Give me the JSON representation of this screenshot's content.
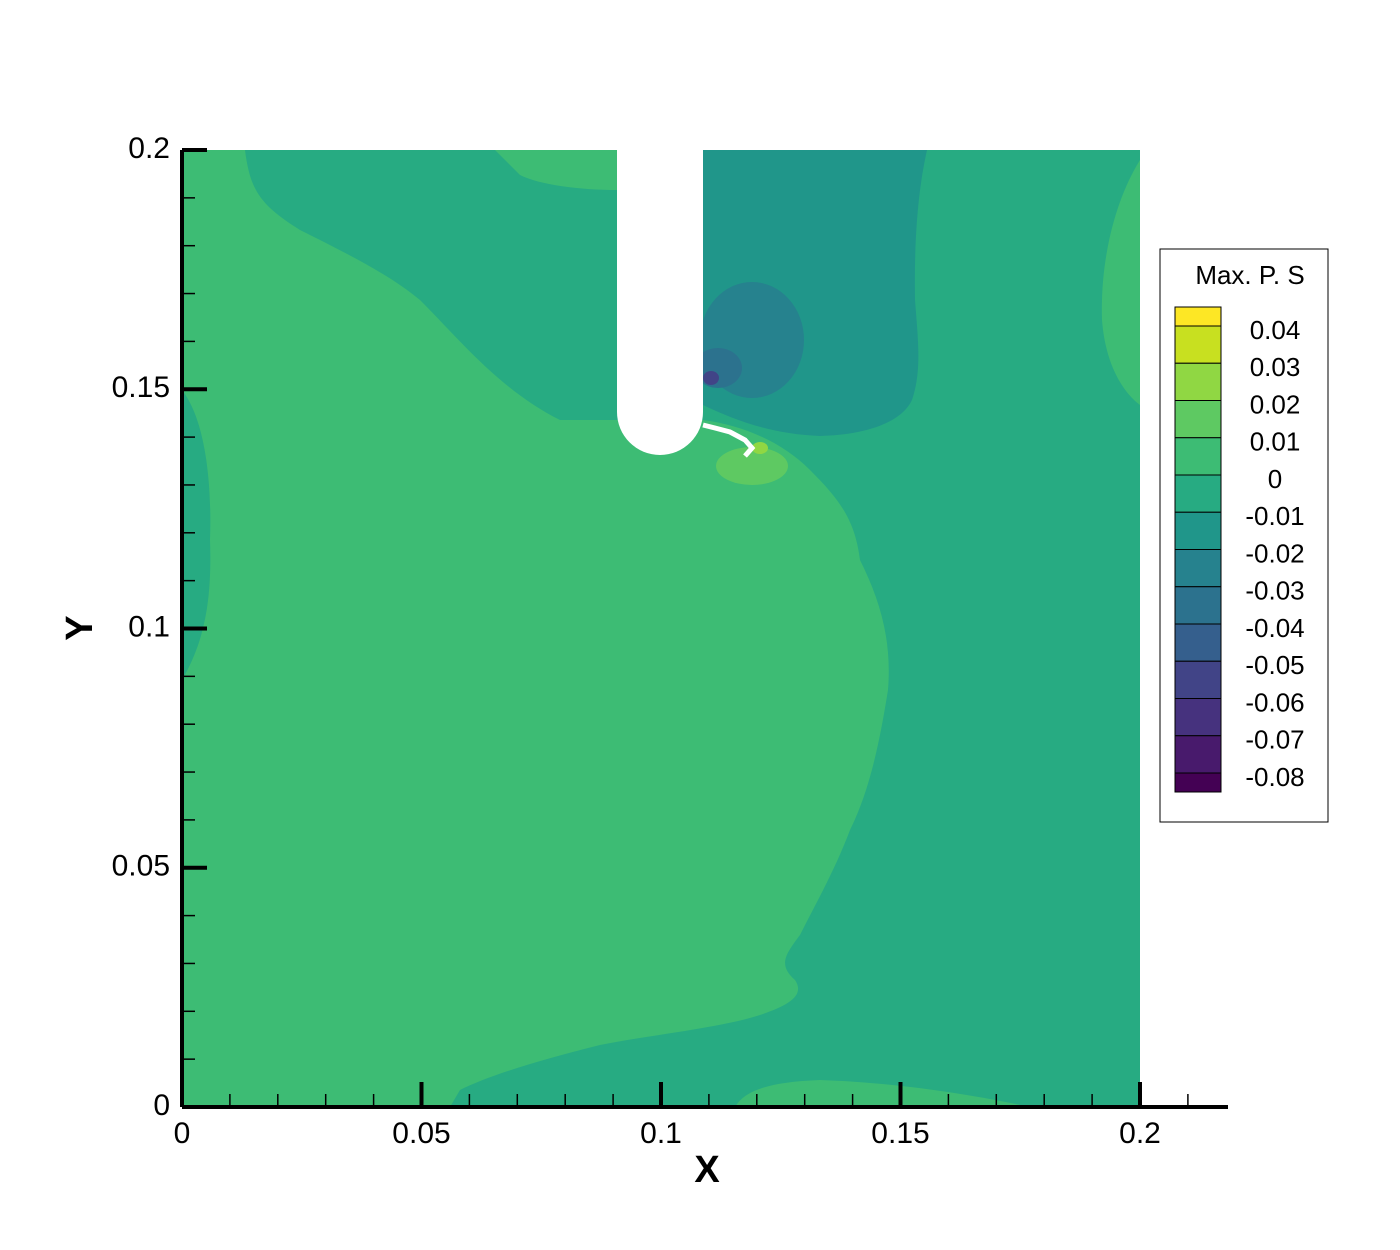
{
  "chart_data": {
    "type": "contour",
    "x_label": "X",
    "y_label": "Y",
    "xlim": [
      0,
      0.218
    ],
    "ylim": [
      0,
      0.2
    ],
    "xticks": [
      0,
      0.05,
      0.1,
      0.15,
      0.2
    ],
    "yticks": [
      0,
      0.05,
      0.1,
      0.15,
      0.2
    ],
    "xminorticks": [
      0.01,
      0.02,
      0.03,
      0.04,
      0.06,
      0.07,
      0.08,
      0.09,
      0.11,
      0.12,
      0.13,
      0.14,
      0.16,
      0.17,
      0.18,
      0.19,
      0.21
    ],
    "yminorticks": [
      0.01,
      0.02,
      0.03,
      0.04,
      0.06,
      0.07,
      0.08,
      0.09,
      0.11,
      0.12,
      0.13,
      0.14,
      0.16,
      0.17,
      0.18,
      0.19
    ],
    "legend": {
      "title": "Max. P. S",
      "levels": [
        0.04,
        0.03,
        0.02,
        0.01,
        0,
        -0.01,
        -0.02,
        -0.03,
        -0.04,
        -0.05,
        -0.06,
        -0.07,
        -0.08
      ],
      "colors": [
        "#fde725",
        "#c8e020",
        "#90d743",
        "#5ec962",
        "#3dbc74",
        "#27ab82",
        "#20968a",
        "#26828e",
        "#2c728e",
        "#355f8d",
        "#414487",
        "#46327e",
        "#481a6c",
        "#440154"
      ]
    }
  }
}
